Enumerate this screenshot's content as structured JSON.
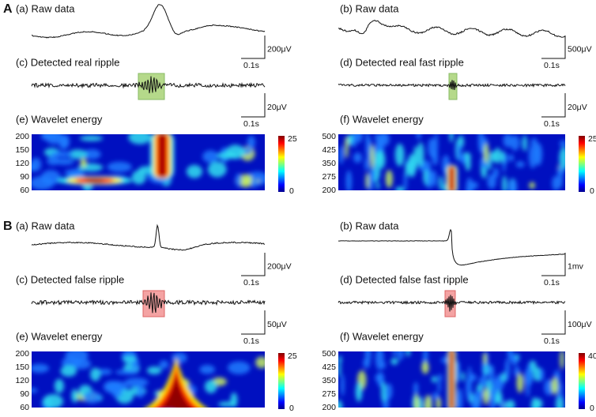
{
  "sections": [
    {
      "label": "A",
      "panels": [
        {
          "raw_title": "(a) Raw data",
          "raw_scale": "200μV",
          "raw_time": "0.1s",
          "detected_title": "(c) Detected real ripple",
          "detected_scale": "20μV",
          "detected_time": "0.1s",
          "wavelet_title": "(e) Wavelet energy",
          "wavelet_yticks": [
            "200",
            "150",
            "120",
            "90",
            "60"
          ],
          "colorbar_max": "25",
          "colorbar_min": "0"
        },
        {
          "raw_title": "(b) Raw data",
          "raw_scale": "500μV",
          "raw_time": "0.1s",
          "detected_title": "(d) Detected real fast ripple",
          "detected_scale": "20μV",
          "detected_time": "0.1s",
          "wavelet_title": "(f) Wavelet energy",
          "wavelet_yticks": [
            "500",
            "425",
            "350",
            "275",
            "200"
          ],
          "colorbar_max": "25",
          "colorbar_min": "0"
        }
      ]
    },
    {
      "label": "B",
      "panels": [
        {
          "raw_title": "(a) Raw data",
          "raw_scale": "200μV",
          "raw_time": "0.1s",
          "detected_title": "(c) Detected false ripple",
          "detected_scale": "50μV",
          "detected_time": "0.1s",
          "wavelet_title": "(e) Wavelet energy",
          "wavelet_yticks": [
            "200",
            "150",
            "120",
            "90",
            "60"
          ],
          "colorbar_max": "25",
          "colorbar_min": "0"
        },
        {
          "raw_title": "(b) Raw data",
          "raw_scale": "1mv",
          "raw_time": "0.1s",
          "detected_title": "(d) Detected false fast ripple",
          "detected_scale": "100μV",
          "detected_time": "0.1s",
          "wavelet_title": "(f) Wavelet energy",
          "wavelet_yticks": [
            "500",
            "425",
            "350",
            "275",
            "200"
          ],
          "colorbar_max": "40",
          "colorbar_min": "0"
        }
      ]
    }
  ]
}
